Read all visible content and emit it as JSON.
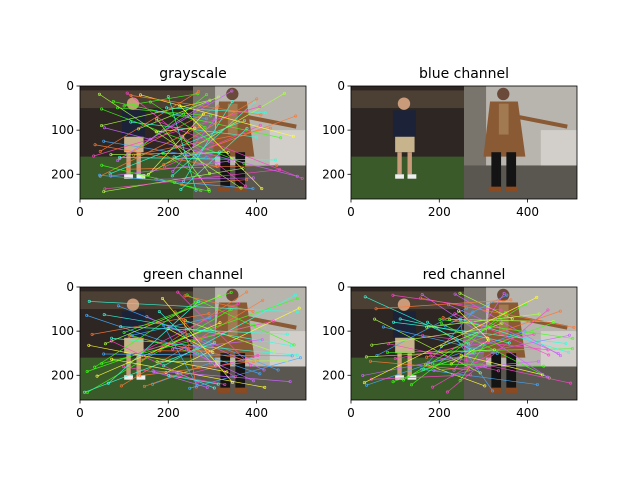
{
  "chart_data": [
    {
      "type": "image",
      "title": "grayscale",
      "xlim": [
        0,
        512
      ],
      "ylim": [
        256,
        0
      ],
      "xticks": [
        0,
        200,
        400
      ],
      "yticks": [
        0,
        100,
        200
      ],
      "image_width": 512,
      "image_height": 256,
      "match_lines": true
    },
    {
      "type": "image",
      "title": "blue channel",
      "xlim": [
        0,
        512
      ],
      "ylim": [
        256,
        0
      ],
      "xticks": [
        0,
        200,
        400
      ],
      "yticks": [
        0,
        100,
        200
      ],
      "image_width": 512,
      "image_height": 256,
      "match_lines": false
    },
    {
      "type": "image",
      "title": "green channel",
      "xlim": [
        0,
        512
      ],
      "ylim": [
        256,
        0
      ],
      "xticks": [
        0,
        200,
        400
      ],
      "yticks": [
        0,
        100,
        200
      ],
      "image_width": 512,
      "image_height": 256,
      "match_lines": true
    },
    {
      "type": "image",
      "title": "red channel",
      "xlim": [
        0,
        512
      ],
      "ylim": [
        256,
        0
      ],
      "xticks": [
        0,
        200,
        400
      ],
      "yticks": [
        0,
        100,
        200
      ],
      "image_width": 512,
      "image_height": 256,
      "match_lines": true
    }
  ],
  "colors": {
    "background": "#ffffff",
    "axis": "#000000",
    "grass": "#3b5a2a",
    "dark_bg": "#2e2622",
    "wall": "#b8b5ae",
    "navy_shirt": "#1c2238",
    "khaki": "#c8b48c",
    "brown_coat": "#8a5a34",
    "black_pants": "#141414",
    "tan": "#a27a52",
    "line_palette": [
      "#39ff14",
      "#ff44cc",
      "#44aaff",
      "#ffff33",
      "#ff7733",
      "#33ffdd",
      "#cc66ff",
      "#aaff44"
    ]
  }
}
